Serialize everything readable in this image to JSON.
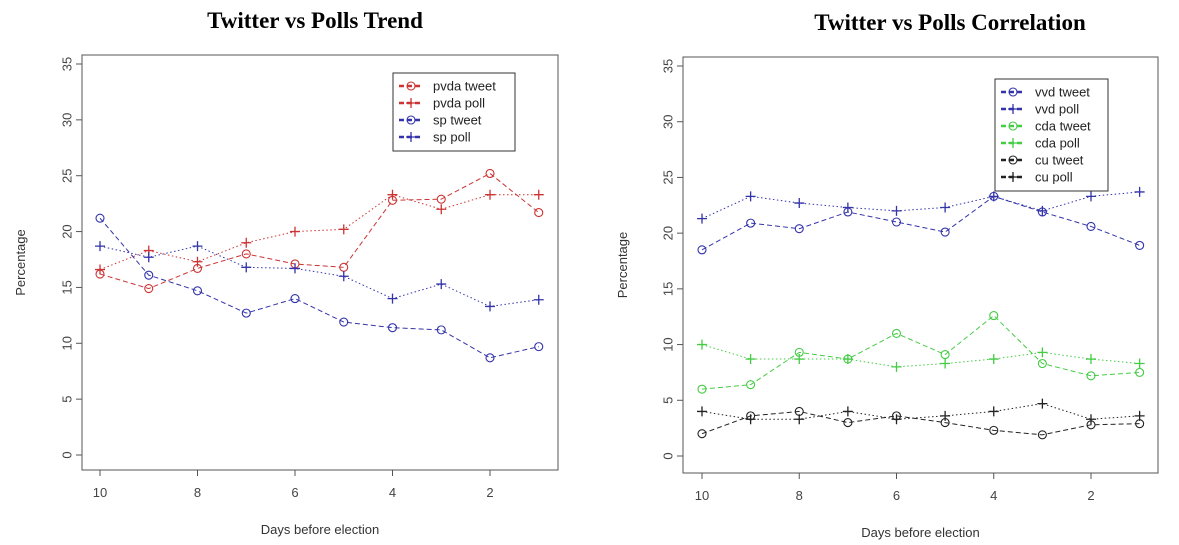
{
  "chart_data": [
    {
      "type": "line",
      "title": "Twitter vs Polls Trend",
      "xlabel": "Days before election",
      "ylabel": "Percentage",
      "x": [
        10,
        9,
        8,
        7,
        6,
        5,
        4,
        3,
        2,
        1
      ],
      "xlim": [
        10.4,
        0.6
      ],
      "ylim": [
        0,
        35
      ],
      "xticks": [
        10,
        8,
        6,
        4,
        2
      ],
      "yticks": [
        0,
        5,
        10,
        15,
        20,
        25,
        30,
        35
      ],
      "grid": false,
      "legend_position": "top-right",
      "series": [
        {
          "name": "pvda tweet",
          "color": "#cc3333",
          "marker": "circle",
          "dash": "dashed",
          "values": [
            16.2,
            14.9,
            16.7,
            18.0,
            17.1,
            16.8,
            22.8,
            22.9,
            25.2,
            21.7
          ]
        },
        {
          "name": "pvda poll",
          "color": "#cc3333",
          "marker": "plus",
          "dash": "dotted",
          "values": [
            16.6,
            18.3,
            17.3,
            19.0,
            20.0,
            20.2,
            23.3,
            22.0,
            23.3,
            23.3
          ]
        },
        {
          "name": "sp tweet",
          "color": "#3333aa",
          "marker": "circle",
          "dash": "dashed",
          "values": [
            21.2,
            16.1,
            14.7,
            12.7,
            14.0,
            11.9,
            11.4,
            11.2,
            8.7,
            9.7
          ]
        },
        {
          "name": "sp poll",
          "color": "#3333aa",
          "marker": "plus",
          "dash": "dotted",
          "values": [
            18.7,
            17.7,
            18.7,
            16.8,
            16.7,
            16.0,
            14.0,
            15.3,
            13.3,
            13.9
          ]
        }
      ]
    },
    {
      "type": "line",
      "title": "Twitter vs Polls Correlation",
      "xlabel": "Days before election",
      "ylabel": "Percentage",
      "x": [
        10,
        9,
        8,
        7,
        6,
        5,
        4,
        3,
        2,
        1
      ],
      "xlim": [
        10.4,
        0.6
      ],
      "ylim": [
        0,
        35
      ],
      "xticks": [
        10,
        8,
        6,
        4,
        2
      ],
      "yticks": [
        0,
        5,
        10,
        15,
        20,
        25,
        30,
        35
      ],
      "grid": false,
      "legend_position": "top-right",
      "series": [
        {
          "name": "vvd tweet",
          "color": "#3333aa",
          "marker": "circle",
          "dash": "dashed",
          "values": [
            18.5,
            20.9,
            20.4,
            21.9,
            21.0,
            20.1,
            23.3,
            21.9,
            20.6,
            18.9
          ]
        },
        {
          "name": "vvd poll",
          "color": "#3333aa",
          "marker": "plus",
          "dash": "dotted",
          "values": [
            21.3,
            23.3,
            22.7,
            22.3,
            22.0,
            22.3,
            23.3,
            22.0,
            23.3,
            23.7
          ]
        },
        {
          "name": "cda tweet",
          "color": "#44cc44",
          "marker": "circle",
          "dash": "dashed",
          "values": [
            6.0,
            6.4,
            9.3,
            8.7,
            11.0,
            9.1,
            12.6,
            8.3,
            7.2,
            7.5
          ]
        },
        {
          "name": "cda poll",
          "color": "#44cc44",
          "marker": "plus",
          "dash": "dotted",
          "values": [
            10.0,
            8.7,
            8.7,
            8.7,
            8.0,
            8.3,
            8.7,
            9.3,
            8.7,
            8.3
          ]
        },
        {
          "name": "cu tweet",
          "color": "#222222",
          "marker": "circle",
          "dash": "dashed",
          "values": [
            2.0,
            3.6,
            4.0,
            3.0,
            3.6,
            3.0,
            2.3,
            1.9,
            2.8,
            2.9
          ]
        },
        {
          "name": "cu poll",
          "color": "#222222",
          "marker": "plus",
          "dash": "dotted",
          "values": [
            4.0,
            3.3,
            3.3,
            4.0,
            3.3,
            3.6,
            4.0,
            4.7,
            3.3,
            3.6
          ]
        }
      ]
    }
  ]
}
